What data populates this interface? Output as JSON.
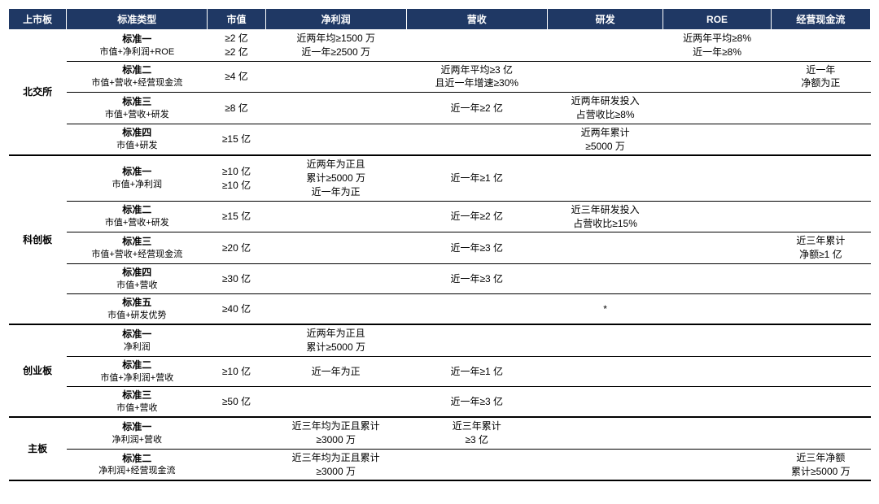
{
  "colors": {
    "header_bg": "#1f3864",
    "header_fg": "#ffffff",
    "text": "#000000",
    "bg": "#ffffff",
    "border": "#000000"
  },
  "col_widths_pct": [
    7,
    17,
    7,
    17,
    17,
    14,
    13,
    12
  ],
  "columns": [
    "上市板",
    "标准类型",
    "市值",
    "净利润",
    "营收",
    "研发",
    "ROE",
    "经营现金流"
  ],
  "groups": [
    {
      "board": "北交所",
      "rows": [
        {
          "std": "标准一",
          "detail": "市值+净利润+ROE",
          "cells": {
            "mv": "≥2 亿\n≥2 亿",
            "np": "近两年均≥1500 万\n近一年≥2500 万",
            "roe": "近两年平均≥8%\n近一年≥8%"
          }
        },
        {
          "std": "标准二",
          "detail": "市值+营收+经营现金流",
          "cells": {
            "mv": "≥4 亿",
            "rev": "近两年平均≥3 亿\n且近一年增速≥30%",
            "cf": "近一年\n净额为正"
          }
        },
        {
          "std": "标准三",
          "detail": "市值+营收+研发",
          "cells": {
            "mv": "≥8 亿",
            "rev": "近一年≥2 亿",
            "rd": "近两年研发投入\n占营收比≥8%"
          }
        },
        {
          "std": "标准四",
          "detail": "市值+研发",
          "cells": {
            "mv": "≥15 亿",
            "rd": "近两年累计\n≥5000 万"
          }
        }
      ]
    },
    {
      "board": "科创板",
      "rows": [
        {
          "std": "标准一",
          "detail": "市值+净利润",
          "cells": {
            "mv": "≥10 亿\n≥10 亿",
            "np": "近两年为正且\n累计≥5000 万\n近一年为正",
            "rev": "近一年≥1 亿"
          }
        },
        {
          "std": "标准二",
          "detail": "市值+营收+研发",
          "cells": {
            "mv": "≥15 亿",
            "rev": "近一年≥2 亿",
            "rd": "近三年研发投入\n占营收比≥15%"
          }
        },
        {
          "std": "标准三",
          "detail": "市值+营收+经营现金流",
          "cells": {
            "mv": "≥20 亿",
            "rev": "近一年≥3 亿",
            "cf": "近三年累计\n净额≥1 亿"
          }
        },
        {
          "std": "标准四",
          "detail": "市值+营收",
          "cells": {
            "mv": "≥30 亿",
            "rev": "近一年≥3 亿"
          }
        },
        {
          "std": "标准五",
          "detail": "市值+研发优势",
          "cells": {
            "mv": "≥40 亿",
            "rd": "*"
          }
        }
      ]
    },
    {
      "board": "创业板",
      "rows": [
        {
          "std": "标准一",
          "detail": "净利润",
          "cells": {
            "np": "近两年为正且\n累计≥5000 万"
          }
        },
        {
          "std": "标准二",
          "detail": "市值+净利润+营收",
          "cells": {
            "mv": "≥10 亿",
            "np": "近一年为正",
            "rev": "近一年≥1 亿"
          }
        },
        {
          "std": "标准三",
          "detail": "市值+营收",
          "cells": {
            "mv": "≥50 亿",
            "rev": "近一年≥3 亿"
          }
        }
      ]
    },
    {
      "board": "主板",
      "rows": [
        {
          "std": "标准一",
          "detail": "净利润+营收",
          "cells": {
            "np": "近三年均为正且累计\n≥3000 万",
            "rev": "近三年累计\n≥3 亿"
          }
        },
        {
          "std": "标准二",
          "detail": "净利润+经营现金流",
          "cells": {
            "np": "近三年均为正且累计\n≥3000 万",
            "cf": "近三年净额\n累计≥5000 万"
          }
        }
      ]
    }
  ]
}
